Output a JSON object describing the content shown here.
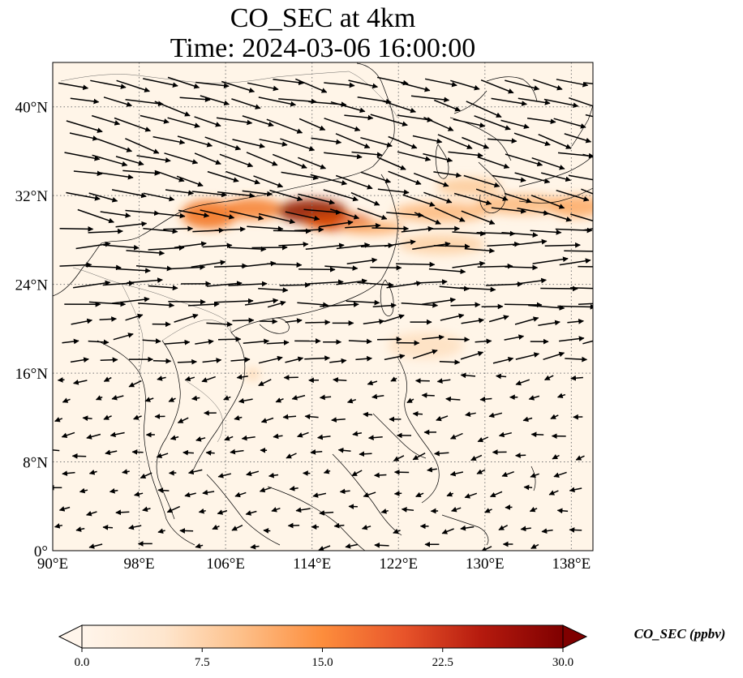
{
  "title": {
    "line1": "CO_SEC at 4km",
    "line2": "Time: 2024-03-06 16:00:00"
  },
  "map": {
    "lon_range": [
      90,
      140
    ],
    "lat_range": [
      0,
      44
    ],
    "lon_ticks": [
      {
        "value": 90,
        "label": "90°E"
      },
      {
        "value": 98,
        "label": "98°E"
      },
      {
        "value": 106,
        "label": "106°E"
      },
      {
        "value": 114,
        "label": "114°E"
      },
      {
        "value": 122,
        "label": "122°E"
      },
      {
        "value": 130,
        "label": "130°E"
      },
      {
        "value": 138,
        "label": "138°E"
      }
    ],
    "lat_ticks": [
      {
        "value": 0,
        "label": "0°"
      },
      {
        "value": 8,
        "label": "8°N"
      },
      {
        "value": 16,
        "label": "16°N"
      },
      {
        "value": 24,
        "label": "24°N"
      },
      {
        "value": 32,
        "label": "32°N"
      },
      {
        "value": 40,
        "label": "40°N"
      }
    ],
    "gridlines": true,
    "background_color": "#fff5e8",
    "plumes": [
      {
        "lon": 104.5,
        "lat": 30.3,
        "rx": 2.6,
        "ry": 1.3,
        "value": 14
      },
      {
        "lon": 108.5,
        "lat": 30.8,
        "rx": 2.8,
        "ry": 1.0,
        "value": 13
      },
      {
        "lon": 114.0,
        "lat": 30.6,
        "rx": 3.2,
        "ry": 1.1,
        "value": 27
      },
      {
        "lon": 116.5,
        "lat": 29.6,
        "rx": 3.2,
        "ry": 0.8,
        "value": 20
      },
      {
        "lon": 119.5,
        "lat": 29.1,
        "rx": 3.0,
        "ry": 0.6,
        "value": 10
      },
      {
        "lon": 126.0,
        "lat": 30.5,
        "rx": 4.5,
        "ry": 0.9,
        "value": 8
      },
      {
        "lon": 133.5,
        "lat": 31.2,
        "rx": 4.5,
        "ry": 0.9,
        "value": 8
      },
      {
        "lon": 138.5,
        "lat": 31.0,
        "rx": 2.5,
        "ry": 1.0,
        "value": 10
      },
      {
        "lon": 128.5,
        "lat": 32.8,
        "rx": 3.0,
        "ry": 0.8,
        "value": 6
      },
      {
        "lon": 126.0,
        "lat": 27.6,
        "rx": 4.0,
        "ry": 0.9,
        "value": 5
      },
      {
        "lon": 124.5,
        "lat": 18.5,
        "rx": 3.5,
        "ry": 1.2,
        "value": 3
      },
      {
        "lon": 108.5,
        "lat": 15.9,
        "rx": 0.6,
        "ry": 0.5,
        "value": 5
      }
    ]
  },
  "colorbar": {
    "label": "CO_SEC (ppbv)",
    "min": 0,
    "max": 30,
    "ticks": [
      {
        "value": 0,
        "label": "0.0"
      },
      {
        "value": 7.5,
        "label": "7.5"
      },
      {
        "value": 15,
        "label": "15.0"
      },
      {
        "value": 22.5,
        "label": "22.5"
      },
      {
        "value": 30,
        "label": "30.0"
      }
    ],
    "colormap": [
      "#fff5eb",
      "#fdd3a7",
      "#fdae6b",
      "#f16913",
      "#d94801",
      "#a63603",
      "#7f0000"
    ]
  }
}
